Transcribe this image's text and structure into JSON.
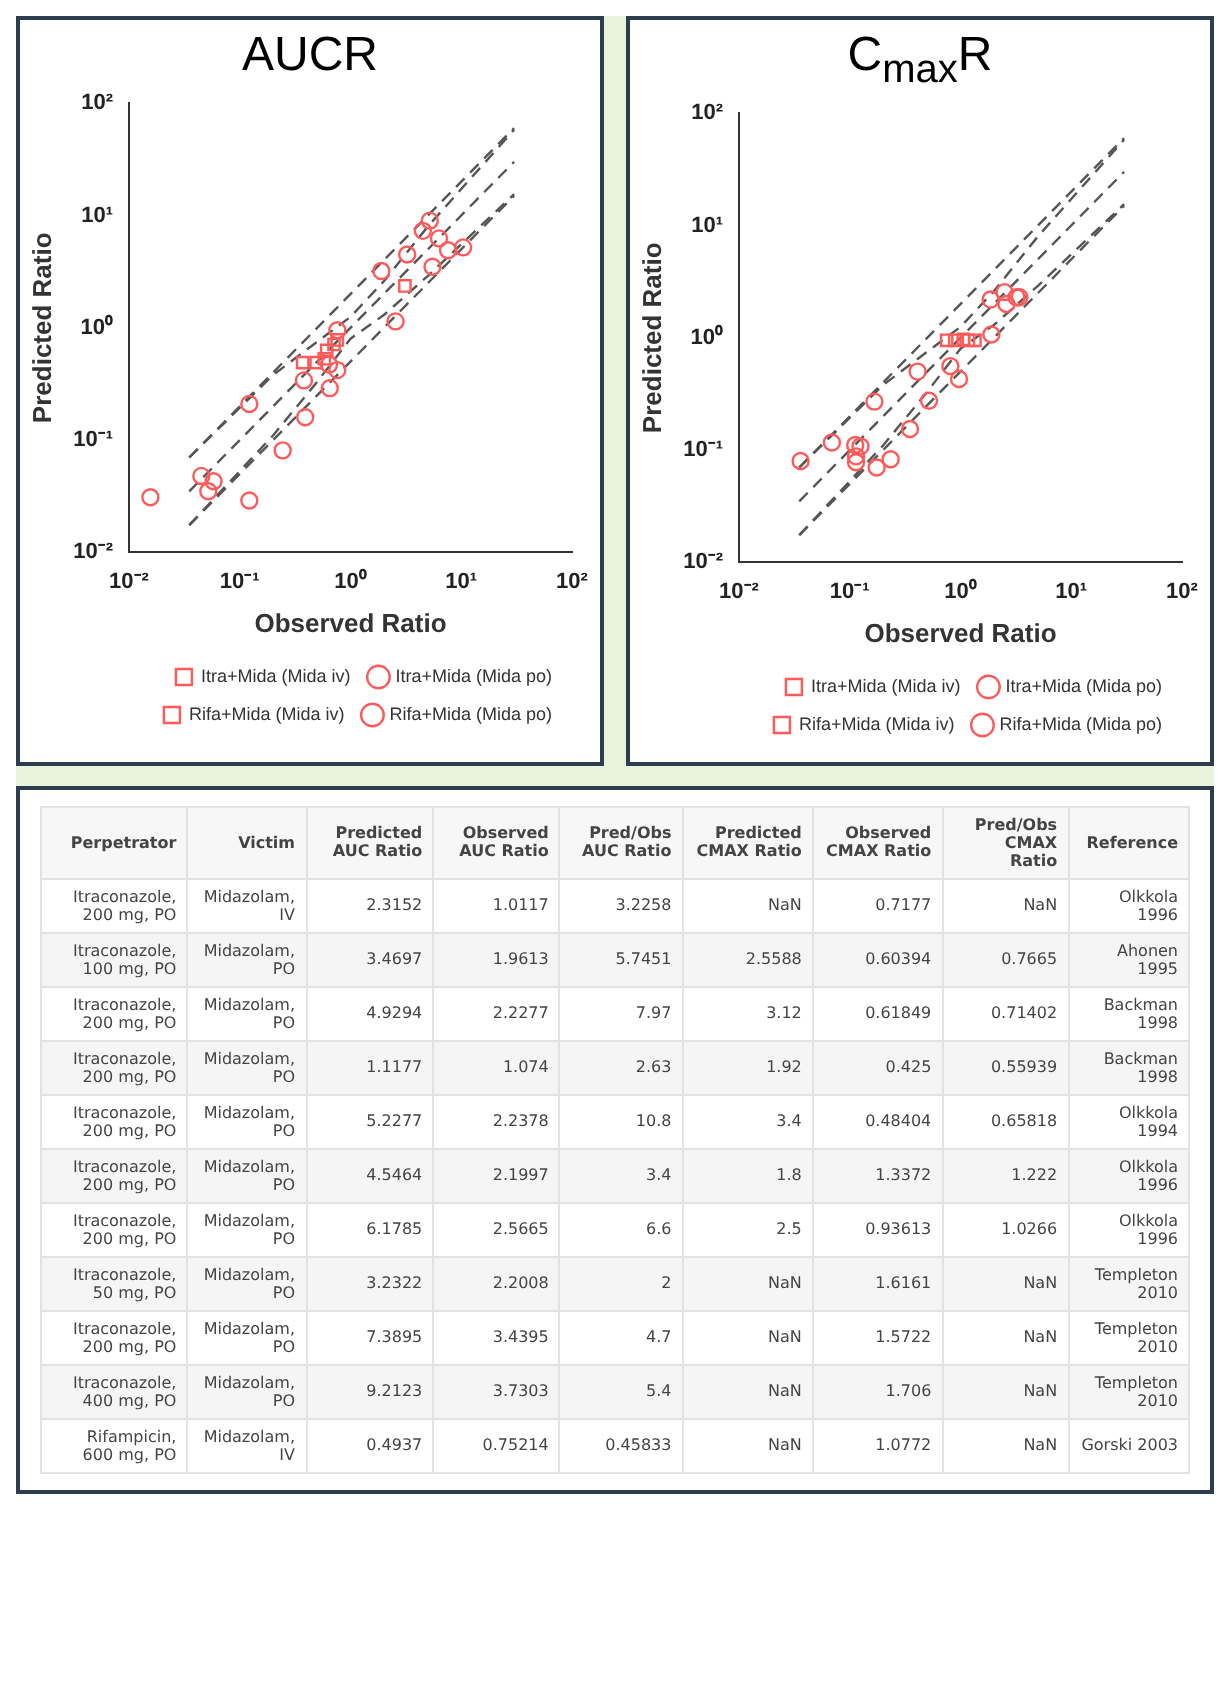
{
  "chart_data": [
    {
      "type": "scatter",
      "title": "AUCR",
      "xlabel": "Observed Ratio",
      "ylabel": "Predicted Ratio",
      "log": "xy",
      "grid": false,
      "legend": "bottom",
      "xlim": [
        0.01,
        100
      ],
      "ylim": [
        0.01,
        100
      ],
      "xticks": [
        {
          "value": 0.01,
          "label": "10⁻²"
        },
        {
          "value": 0.1,
          "label": "10⁻¹"
        },
        {
          "value": 1,
          "label": "10⁰"
        },
        {
          "value": 10,
          "label": "10¹"
        },
        {
          "value": 100,
          "label": "10²"
        }
      ],
      "yticks": [
        {
          "value": 0.01,
          "label": "10⁻²"
        },
        {
          "value": 0.1,
          "label": "10⁻¹"
        },
        {
          "value": 1,
          "label": "10⁰"
        },
        {
          "value": 10,
          "label": "10¹"
        },
        {
          "value": 100,
          "label": "10²"
        }
      ],
      "series": [
        {
          "name": "Itra+Mida (Mida iv)",
          "color": "#ff5a5a",
          "marker": "square",
          "x": [
            3.1
          ],
          "values": [
            2.36
          ]
        },
        {
          "name": "Itra+Mida (Mida po)",
          "color": "#ff5a5a",
          "marker": "circle",
          "x": [
            1.9,
            2.55,
            3.25,
            4.5,
            5.2,
            5.5,
            6.3,
            7.6,
            10.4
          ],
          "values": [
            3.2,
            1.14,
            4.5,
            7.3,
            9.0,
            3.5,
            6.25,
            4.9,
            5.2
          ]
        },
        {
          "name": "Rifa+Mida (Mida iv)",
          "color": "#ff5a5a",
          "marker": "square",
          "x": [
            0.37,
            0.49,
            0.58,
            0.61,
            0.71,
            0.76
          ],
          "values": [
            0.49,
            0.49,
            0.53,
            0.63,
            0.71,
            0.78
          ]
        },
        {
          "name": "Rifa+Mida (Mida po)",
          "color": "#ff5a5a",
          "marker": "circle",
          "x": [
            0.0156,
            0.045,
            0.052,
            0.058,
            0.122,
            0.122,
            0.244,
            0.38,
            0.39,
            0.64,
            0.65,
            0.76,
            0.76
          ],
          "values": [
            0.031,
            0.048,
            0.035,
            0.043,
            0.21,
            0.029,
            0.081,
            0.34,
            0.16,
            0.47,
            0.29,
            0.42,
            0.95
          ]
        },
        {
          "type": "line",
          "color": "#555555",
          "line_style": "dashed",
          "marker": "none",
          "x": [
            0.035,
            30
          ],
          "values": [
            0.07,
            60
          ]
        },
        {
          "type": "line",
          "color": "#555555",
          "line_style": "dashed",
          "marker": "none",
          "x": [
            0.035,
            30
          ],
          "values": [
            0.035,
            30
          ]
        },
        {
          "type": "line",
          "color": "#555555",
          "line_style": "dashed",
          "marker": "none",
          "x": [
            0.035,
            30
          ],
          "values": [
            0.0175,
            15
          ]
        },
        {
          "type": "line",
          "color": "#555555",
          "line_style": "dashed",
          "marker": "none",
          "x": [
            0.035,
            0.2,
            0.5,
            1,
            2,
            5,
            30
          ],
          "values": [
            0.07,
            0.38,
            0.75,
            1.25,
            2.6,
            8,
            58
          ]
        },
        {
          "type": "line",
          "color": "#555555",
          "line_style": "dashed",
          "marker": "none",
          "x": [
            0.035,
            0.2,
            0.5,
            1,
            2,
            5,
            30
          ],
          "values": [
            0.0175,
            0.11,
            0.33,
            0.8,
            1.3,
            2.9,
            15.5
          ]
        }
      ]
    },
    {
      "type": "scatter",
      "title": "C$_{max}$R",
      "xlabel": "Observed Ratio",
      "ylabel": "Predicted Ratio",
      "log": "xy",
      "grid": false,
      "legend": "bottom",
      "xlim": [
        0.01,
        100
      ],
      "ylim": [
        0.01,
        100
      ],
      "xticks": [
        {
          "value": 0.01,
          "label": "10⁻²"
        },
        {
          "value": 0.1,
          "label": "10⁻¹"
        },
        {
          "value": 1,
          "label": "10⁰"
        },
        {
          "value": 10,
          "label": "10¹"
        },
        {
          "value": 100,
          "label": "10²"
        }
      ],
      "yticks": [
        {
          "value": 0.01,
          "label": "10⁻²"
        },
        {
          "value": 0.1,
          "label": "10⁻¹"
        },
        {
          "value": 1,
          "label": "10⁰"
        },
        {
          "value": 10,
          "label": "10¹"
        },
        {
          "value": 100,
          "label": "10²"
        }
      ],
      "series": [
        {
          "name": "Itra+Mida (Mida iv)",
          "color": "#ff5a5a",
          "marker": "square",
          "x": [
            0.75
          ],
          "values": [
            0.95
          ]
        },
        {
          "name": "Itra+Mida (Mida po)",
          "color": "#ff5a5a",
          "marker": "circle",
          "x": [
            1.87,
            1.9,
            2.5,
            2.6,
            3.2,
            3.4
          ],
          "values": [
            2.19,
            1.07,
            2.55,
            2.0,
            2.3,
            2.3
          ]
        },
        {
          "name": "Rifa+Mida (Mida iv)",
          "color": "#ff5a5a",
          "marker": "square",
          "x": [
            0.89,
            1.06,
            1.18,
            1.35
          ],
          "values": [
            0.95,
            0.97,
            0.95,
            0.95
          ]
        },
        {
          "name": "Rifa+Mida (Mida po)",
          "color": "#ff5a5a",
          "marker": "circle",
          "x": [
            0.036,
            0.069,
            0.112,
            0.114,
            0.114,
            0.125,
            0.167,
            0.175,
            0.234,
            0.35,
            0.41,
            0.52,
            0.81,
            0.97
          ],
          "values": [
            0.08,
            0.117,
            0.111,
            0.088,
            0.078,
            0.108,
            0.27,
            0.07,
            0.083,
            0.154,
            0.5,
            0.275,
            0.56,
            0.43
          ]
        },
        {
          "type": "line",
          "color": "#555555",
          "line_style": "dashed",
          "marker": "none",
          "x": [
            0.035,
            30
          ],
          "values": [
            0.07,
            60
          ]
        },
        {
          "type": "line",
          "color": "#555555",
          "line_style": "dashed",
          "marker": "none",
          "x": [
            0.035,
            30
          ],
          "values": [
            0.035,
            30
          ]
        },
        {
          "type": "line",
          "color": "#555555",
          "line_style": "dashed",
          "marker": "none",
          "x": [
            0.035,
            30
          ],
          "values": [
            0.0175,
            15
          ]
        },
        {
          "type": "line",
          "color": "#555555",
          "line_style": "dashed",
          "marker": "none",
          "x": [
            0.035,
            0.2,
            0.5,
            1,
            2,
            5,
            30
          ],
          "values": [
            0.07,
            0.38,
            0.75,
            1.25,
            2.6,
            8,
            58
          ]
        },
        {
          "type": "line",
          "color": "#555555",
          "line_style": "dashed",
          "marker": "none",
          "x": [
            0.035,
            0.2,
            0.5,
            1,
            2,
            5,
            30
          ],
          "values": [
            0.0175,
            0.11,
            0.33,
            0.8,
            1.3,
            2.9,
            15.5
          ]
        }
      ]
    },
    {
      "type": "other",
      "categories": [
        "Perpetrator",
        "Victim",
        "Predicted AUC Ratio",
        "Observed AUC Ratio",
        "Pred/Obs AUC Ratio",
        "Predicted CMAX Ratio",
        "Observed CMAX Ratio",
        "Pred/Obs CMAX Ratio",
        "Reference"
      ],
      "cell_labels": [
        [
          "Itraconazole, 200 mg, PO",
          "Midazolam, IV",
          "2.3152",
          "1.0117",
          "3.2258",
          "NaN",
          "0.7177",
          "NaN",
          "Olkkola 1996"
        ],
        [
          "Itraconazole, 100 mg, PO",
          "Midazolam, PO",
          "3.4697",
          "1.9613",
          "5.7451",
          "2.5588",
          "0.60394",
          "0.7665",
          "Ahonen 1995"
        ],
        [
          "Itraconazole, 200 mg, PO",
          "Midazolam, PO",
          "4.9294",
          "2.2277",
          "7.97",
          "3.12",
          "0.61849",
          "0.71402",
          "Backman 1998"
        ],
        [
          "Itraconazole, 200 mg, PO",
          "Midazolam, PO",
          "1.1177",
          "1.074",
          "2.63",
          "1.92",
          "0.425",
          "0.55939",
          "Backman 1998"
        ],
        [
          "Itraconazole, 200 mg, PO",
          "Midazolam, PO",
          "5.2277",
          "2.2378",
          "10.8",
          "3.4",
          "0.48404",
          "0.65818",
          "Olkkola 1994"
        ],
        [
          "Itraconazole, 200 mg, PO",
          "Midazolam, PO",
          "4.5464",
          "2.1997",
          "3.4",
          "1.8",
          "1.3372",
          "1.222",
          "Olkkola 1996"
        ],
        [
          "Itraconazole, 200 mg, PO",
          "Midazolam, PO",
          "6.1785",
          "2.5665",
          "6.6",
          "2.5",
          "0.93613",
          "1.0266",
          "Olkkola 1996"
        ],
        [
          "Itraconazole, 50 mg, PO",
          "Midazolam, PO",
          "3.2322",
          "2.2008",
          "2",
          "NaN",
          "1.6161",
          "NaN",
          "Templeton 2010"
        ],
        [
          "Itraconazole, 200 mg, PO",
          "Midazolam, PO",
          "7.3895",
          "3.4395",
          "4.7",
          "NaN",
          "1.5722",
          "NaN",
          "Templeton 2010"
        ],
        [
          "Itraconazole, 400 mg, PO",
          "Midazolam, PO",
          "9.2123",
          "3.7303",
          "5.4",
          "NaN",
          "1.706",
          "NaN",
          "Templeton 2010"
        ],
        [
          "Rifampicin, 600 mg, PO",
          "Midazolam, IV",
          "0.4937",
          "0.75214",
          "0.45833",
          "NaN",
          "1.0772",
          "NaN",
          "Gorski 2003"
        ]
      ]
    }
  ]
}
